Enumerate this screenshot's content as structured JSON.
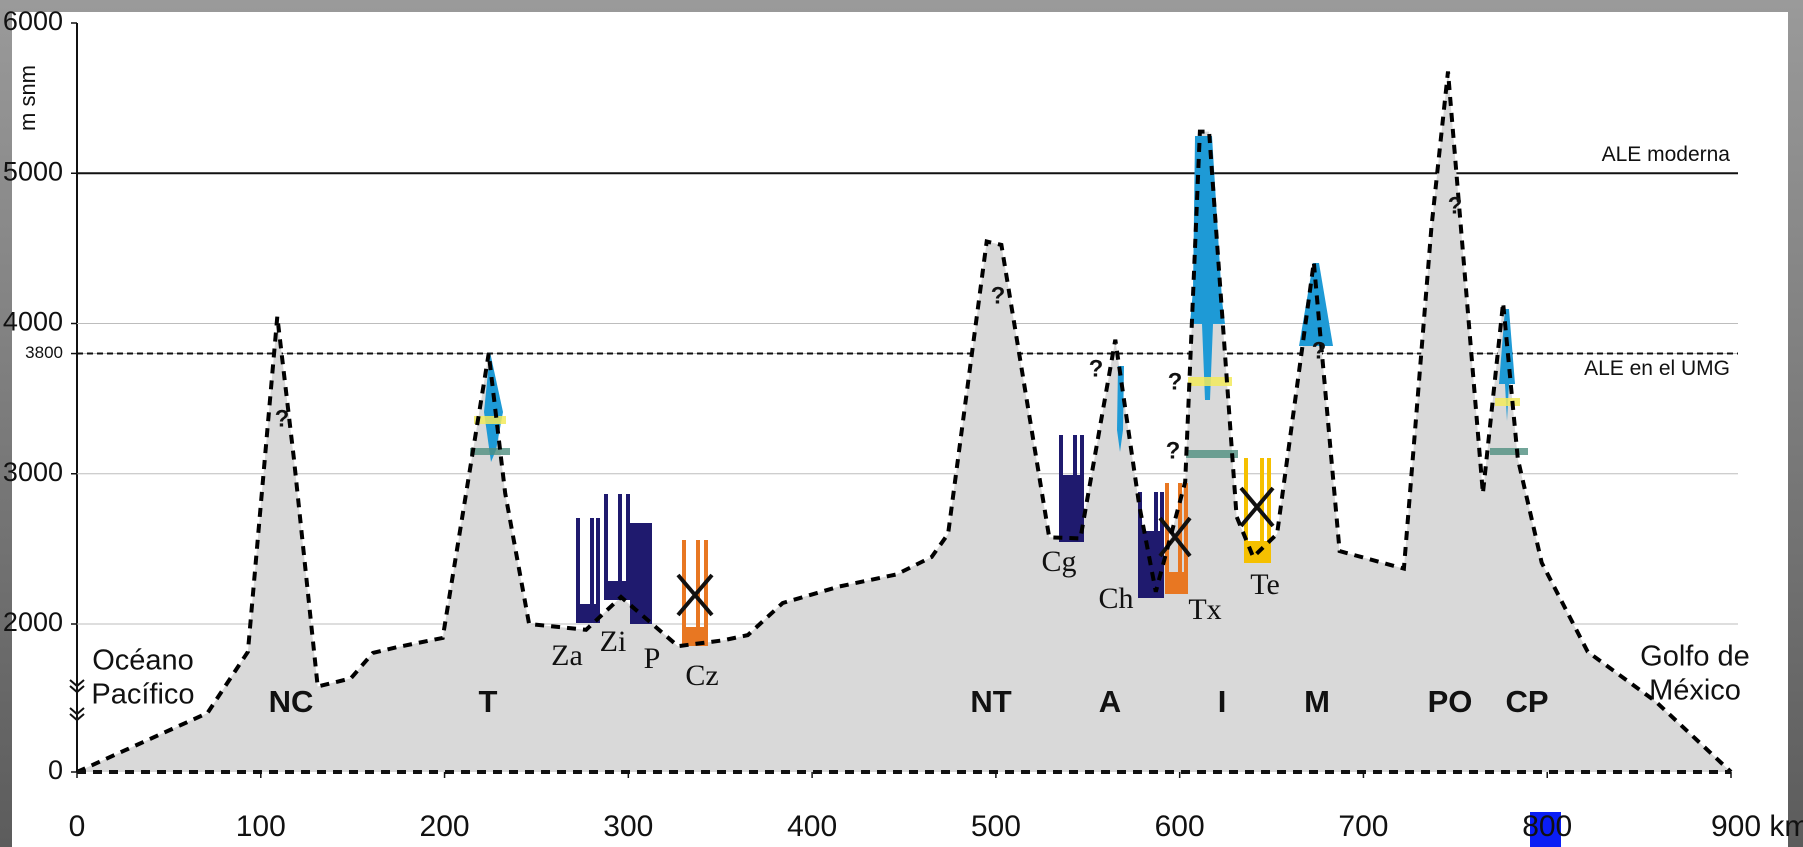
{
  "chart_data": {
    "type": "area",
    "ylabel": "m snm",
    "x": [
      0,
      71,
      93,
      109,
      118,
      131,
      149,
      161,
      174,
      199,
      224,
      233,
      246,
      277,
      296,
      327,
      352,
      365,
      384,
      415,
      446,
      465,
      474,
      495,
      503,
      529,
      546,
      565,
      578,
      587,
      603,
      611,
      616,
      631,
      640,
      653,
      673,
      687,
      722,
      737,
      746,
      765,
      776,
      784,
      797,
      822,
      859,
      900
    ],
    "values": [
      0,
      797,
      1625,
      4046,
      3100,
      1156,
      1265,
      1609,
      1687,
      1812,
      3800,
      2870,
      2000,
      1922,
      2180,
      1700,
      1781,
      1850,
      2140,
      2250,
      2330,
      2446,
      2600,
      4546,
      4523,
      2577,
      2570,
      3892,
      2792,
      2215,
      2946,
      5277,
      5277,
      2715,
      2446,
      2600,
      4408,
      2485,
      2369,
      4638,
      5677,
      2869,
      4138,
      3100,
      2408,
      1625,
      953,
      0
    ],
    "fill": "#d9d9d9",
    "line_color": "#000000",
    "xlim": [
      0,
      900
    ],
    "xticks": [
      0,
      100,
      200,
      300,
      400,
      500,
      600,
      700,
      800,
      {
        "value": 900,
        "label": "900 km"
      }
    ],
    "ylim": [
      0,
      6000
    ],
    "y_break": [
      0,
      2000
    ],
    "yticks": [
      0,
      2000,
      3000,
      3800,
      4000,
      5000,
      6000
    ],
    "grid": true,
    "reference_lines": [
      {
        "value": 5000,
        "label": "ALE moderna",
        "style": "solid"
      },
      {
        "value": 3800,
        "label": "ALE en el UMG",
        "style": "dashed"
      }
    ],
    "regions": [
      "NC",
      "T",
      "NT",
      "A",
      "I",
      "M",
      "PO",
      "CP"
    ],
    "sites": [
      "Za",
      "Zi",
      "P",
      "Cz",
      "Cg",
      "Ch",
      "Tx",
      "Te"
    ],
    "uncertain_mark": "?",
    "left_label": [
      "Océano",
      "Pacífico"
    ],
    "right_label": [
      "Golfo de",
      "México"
    ]
  }
}
